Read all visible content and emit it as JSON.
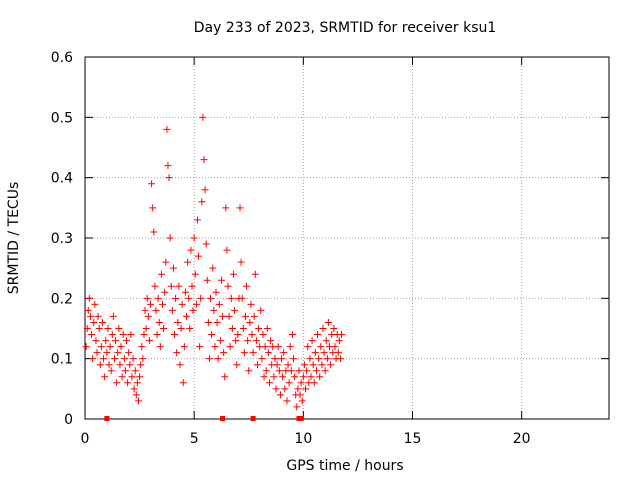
{
  "chart_data": {
    "type": "scatter",
    "title": "Day 233 of 2023, SRMTID for receiver ksu1",
    "xlabel": "GPS time / hours",
    "ylabel": "SRMTID / TECUs",
    "xlim": [
      0,
      24
    ],
    "ylim": [
      0,
      0.6
    ],
    "x_ticks": [
      0,
      5,
      10,
      15,
      20
    ],
    "y_ticks": [
      0,
      0.1,
      0.2,
      0.3,
      0.4,
      0.5,
      0.6
    ],
    "grid": true,
    "marker": "+",
    "color": "#ff0000",
    "series": [
      {
        "name": "SRMTID",
        "points": [
          [
            0.05,
            0.12
          ],
          [
            0.1,
            0.15
          ],
          [
            0.15,
            0.18
          ],
          [
            0.2,
            0.2
          ],
          [
            0.25,
            0.17
          ],
          [
            0.3,
            0.14
          ],
          [
            0.35,
            0.1
          ],
          [
            0.4,
            0.16
          ],
          [
            0.45,
            0.19
          ],
          [
            0.5,
            0.13
          ],
          [
            0.55,
            0.11
          ],
          [
            0.6,
            0.17
          ],
          [
            0.65,
            0.15
          ],
          [
            0.7,
            0.09
          ],
          [
            0.75,
            0.12
          ],
          [
            0.8,
            0.16
          ],
          [
            0.85,
            0.1
          ],
          [
            0.9,
            0.07
          ],
          [
            0.95,
            0.13
          ],
          [
            1.0,
            0.11
          ],
          [
            1.05,
            0.15
          ],
          [
            1.1,
            0.09
          ],
          [
            1.15,
            0.12
          ],
          [
            1.2,
            0.08
          ],
          [
            1.25,
            0.14
          ],
          [
            1.3,
            0.17
          ],
          [
            1.35,
            0.1
          ],
          [
            1.4,
            0.13
          ],
          [
            1.45,
            0.06
          ],
          [
            1.5,
            0.11
          ],
          [
            1.55,
            0.15
          ],
          [
            1.6,
            0.09
          ],
          [
            1.65,
            0.12
          ],
          [
            1.7,
            0.07
          ],
          [
            1.75,
            0.14
          ],
          [
            1.8,
            0.1
          ],
          [
            1.85,
            0.08
          ],
          [
            1.9,
            0.13
          ],
          [
            1.95,
            0.06
          ],
          [
            2.0,
            0.11
          ],
          [
            2.05,
            0.09
          ],
          [
            2.1,
            0.14
          ],
          [
            2.15,
            0.07
          ],
          [
            2.2,
            0.1
          ],
          [
            2.25,
            0.05
          ],
          [
            2.3,
            0.08
          ],
          [
            2.35,
            0.04
          ],
          [
            2.4,
            0.06
          ],
          [
            2.45,
            0.03
          ],
          [
            2.5,
            0.07
          ],
          [
            2.55,
            0.09
          ],
          [
            2.6,
            0.12
          ],
          [
            2.65,
            0.1
          ],
          [
            2.7,
            0.14
          ],
          [
            2.75,
            0.18
          ],
          [
            2.8,
            0.15
          ],
          [
            2.85,
            0.2
          ],
          [
            2.9,
            0.17
          ],
          [
            2.95,
            0.13
          ],
          [
            3.0,
            0.19
          ],
          [
            3.05,
            0.39
          ],
          [
            3.1,
            0.35
          ],
          [
            3.15,
            0.31
          ],
          [
            3.2,
            0.22
          ],
          [
            3.25,
            0.18
          ],
          [
            3.3,
            0.14
          ],
          [
            3.35,
            0.2
          ],
          [
            3.4,
            0.16
          ],
          [
            3.45,
            0.12
          ],
          [
            3.5,
            0.24
          ],
          [
            3.55,
            0.19
          ],
          [
            3.6,
            0.15
          ],
          [
            3.65,
            0.21
          ],
          [
            3.7,
            0.26
          ],
          [
            3.75,
            0.48
          ],
          [
            3.8,
            0.42
          ],
          [
            3.85,
            0.4
          ],
          [
            3.9,
            0.3
          ],
          [
            3.95,
            0.22
          ],
          [
            4.0,
            0.18
          ],
          [
            4.05,
            0.25
          ],
          [
            4.1,
            0.14
          ],
          [
            4.15,
            0.2
          ],
          [
            4.2,
            0.11
          ],
          [
            4.25,
            0.16
          ],
          [
            4.3,
            0.22
          ],
          [
            4.35,
            0.09
          ],
          [
            4.4,
            0.15
          ],
          [
            4.45,
            0.19
          ],
          [
            4.5,
            0.06
          ],
          [
            4.55,
            0.12
          ],
          [
            4.6,
            0.21
          ],
          [
            4.65,
            0.17
          ],
          [
            4.7,
            0.26
          ],
          [
            4.75,
            0.2
          ],
          [
            4.8,
            0.15
          ],
          [
            4.85,
            0.28
          ],
          [
            4.9,
            0.22
          ],
          [
            4.95,
            0.18
          ],
          [
            5.0,
            0.3
          ],
          [
            5.05,
            0.24
          ],
          [
            5.1,
            0.19
          ],
          [
            5.15,
            0.33
          ],
          [
            5.2,
            0.27
          ],
          [
            5.25,
            0.12
          ],
          [
            5.3,
            0.2
          ],
          [
            5.35,
            0.36
          ],
          [
            5.4,
            0.5
          ],
          [
            5.45,
            0.43
          ],
          [
            5.5,
            0.38
          ],
          [
            5.55,
            0.29
          ],
          [
            5.6,
            0.23
          ],
          [
            5.65,
            0.16
          ],
          [
            5.7,
            0.1
          ],
          [
            5.75,
            0.2
          ],
          [
            5.8,
            0.14
          ],
          [
            5.85,
            0.25
          ],
          [
            5.9,
            0.18
          ],
          [
            5.95,
            0.12
          ],
          [
            6.0,
            0.21
          ],
          [
            6.05,
            0.16
          ],
          [
            6.1,
            0.1
          ],
          [
            6.15,
            0.19
          ],
          [
            6.2,
            0.13
          ],
          [
            6.25,
            0.23
          ],
          [
            6.3,
            0.17
          ],
          [
            6.35,
            0.11
          ],
          [
            6.4,
            0.07
          ],
          [
            6.45,
            0.35
          ],
          [
            6.5,
            0.28
          ],
          [
            6.55,
            0.22
          ],
          [
            6.6,
            0.17
          ],
          [
            6.65,
            0.12
          ],
          [
            6.7,
            0.2
          ],
          [
            6.75,
            0.15
          ],
          [
            6.8,
            0.24
          ],
          [
            6.85,
            0.18
          ],
          [
            6.9,
            0.13
          ],
          [
            6.95,
            0.09
          ],
          [
            7.0,
            0.14
          ],
          [
            7.05,
            0.2
          ],
          [
            7.1,
            0.35
          ],
          [
            7.15,
            0.26
          ],
          [
            7.2,
            0.2
          ],
          [
            7.25,
            0.15
          ],
          [
            7.3,
            0.11
          ],
          [
            7.35,
            0.17
          ],
          [
            7.4,
            0.22
          ],
          [
            7.45,
            0.13
          ],
          [
            7.5,
            0.08
          ],
          [
            7.55,
            0.16
          ],
          [
            7.6,
            0.19
          ],
          [
            7.65,
            0.14
          ],
          [
            7.7,
            0.11
          ],
          [
            7.75,
            0.17
          ],
          [
            7.8,
            0.24
          ],
          [
            7.85,
            0.13
          ],
          [
            7.9,
            0.09
          ],
          [
            7.95,
            0.15
          ],
          [
            8.0,
            0.12
          ],
          [
            8.05,
            0.18
          ],
          [
            8.1,
            0.1
          ],
          [
            8.15,
            0.14
          ],
          [
            8.2,
            0.07
          ],
          [
            8.25,
            0.12
          ],
          [
            8.3,
            0.08
          ],
          [
            8.35,
            0.15
          ],
          [
            8.4,
            0.11
          ],
          [
            8.45,
            0.06
          ],
          [
            8.5,
            0.13
          ],
          [
            8.55,
            0.09
          ],
          [
            8.6,
            0.12
          ],
          [
            8.65,
            0.07
          ],
          [
            8.7,
            0.1
          ],
          [
            8.75,
            0.05
          ],
          [
            8.8,
            0.09
          ],
          [
            8.85,
            0.12
          ],
          [
            8.9,
            0.08
          ],
          [
            8.95,
            0.04
          ],
          [
            9.0,
            0.1
          ],
          [
            9.05,
            0.07
          ],
          [
            9.1,
            0.11
          ],
          [
            9.15,
            0.05
          ],
          [
            9.2,
            0.08
          ],
          [
            9.25,
            0.03
          ],
          [
            9.3,
            0.09
          ],
          [
            9.35,
            0.06
          ],
          [
            9.4,
            0.12
          ],
          [
            9.45,
            0.08
          ],
          [
            9.5,
            0.14
          ],
          [
            9.55,
            0.1
          ],
          [
            9.6,
            0.07
          ],
          [
            9.65,
            0.04
          ],
          [
            9.7,
            0.02
          ],
          [
            9.75,
            0.05
          ],
          [
            9.8,
            0.08
          ],
          [
            9.85,
            0.04
          ],
          [
            9.9,
            0.06
          ],
          [
            9.95,
            0.03
          ],
          [
            10.0,
            0.07
          ],
          [
            10.05,
            0.09
          ],
          [
            10.1,
            0.05
          ],
          [
            10.15,
            0.08
          ],
          [
            10.2,
            0.12
          ],
          [
            10.25,
            0.06
          ],
          [
            10.3,
            0.1
          ],
          [
            10.35,
            0.07
          ],
          [
            10.4,
            0.13
          ],
          [
            10.45,
            0.09
          ],
          [
            10.5,
            0.06
          ],
          [
            10.55,
            0.11
          ],
          [
            10.6,
            0.08
          ],
          [
            10.65,
            0.14
          ],
          [
            10.7,
            0.1
          ],
          [
            10.75,
            0.07
          ],
          [
            10.8,
            0.12
          ],
          [
            10.85,
            0.09
          ],
          [
            10.9,
            0.15
          ],
          [
            10.95,
            0.11
          ],
          [
            11.0,
            0.08
          ],
          [
            11.05,
            0.13
          ],
          [
            11.1,
            0.1
          ],
          [
            11.15,
            0.16
          ],
          [
            11.2,
            0.12
          ],
          [
            11.25,
            0.09
          ],
          [
            11.3,
            0.14
          ],
          [
            11.35,
            0.11
          ],
          [
            11.4,
            0.15
          ],
          [
            11.45,
            0.12
          ],
          [
            11.5,
            0.1
          ],
          [
            11.55,
            0.14
          ],
          [
            11.6,
            0.11
          ],
          [
            11.65,
            0.13
          ],
          [
            11.7,
            0.1
          ],
          [
            11.75,
            0.14
          ]
        ]
      }
    ],
    "zero_markers": [
      1.0,
      6.3,
      7.7,
      9.8,
      9.9
    ]
  }
}
